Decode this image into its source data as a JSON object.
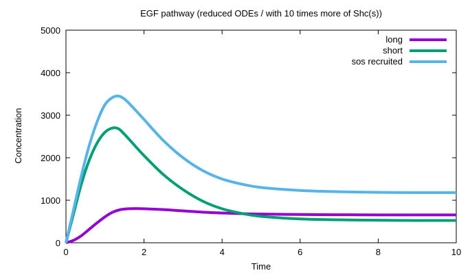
{
  "chart_data": {
    "type": "line",
    "title": "EGF pathway (reduced ODEs / with 10 times more of Shc(s))",
    "xlabel": "Time",
    "ylabel": "Concentration",
    "xlim": [
      0,
      10
    ],
    "ylim": [
      0,
      5000
    ],
    "xticks": [
      "0",
      "2",
      "4",
      "6",
      "8",
      "10"
    ],
    "yticks": [
      "0",
      "1000",
      "2000",
      "3000",
      "4000",
      "5000"
    ],
    "grid": false,
    "legend_position": "top-right",
    "series": [
      {
        "name": "long",
        "color": "#9400d3",
        "x": [
          0,
          0.2,
          0.4,
          0.6,
          0.8,
          1.0,
          1.2,
          1.4,
          1.6,
          1.8,
          2.0,
          2.5,
          3.0,
          3.5,
          4.0,
          4.5,
          5.0,
          6.0,
          7.0,
          8.0,
          9.0,
          10.0
        ],
        "y": [
          0,
          60,
          170,
          320,
          470,
          610,
          720,
          780,
          800,
          805,
          800,
          780,
          750,
          720,
          700,
          685,
          675,
          665,
          660,
          655,
          655,
          655
        ]
      },
      {
        "name": "short",
        "color": "#009e73",
        "x": [
          0,
          0.2,
          0.4,
          0.6,
          0.8,
          1.0,
          1.2,
          1.35,
          1.5,
          1.7,
          2.0,
          2.5,
          3.0,
          3.5,
          4.0,
          4.5,
          5.0,
          6.0,
          7.0,
          8.0,
          9.0,
          10.0
        ],
        "y": [
          0,
          700,
          1400,
          1950,
          2350,
          2600,
          2700,
          2680,
          2550,
          2350,
          2050,
          1600,
          1250,
          980,
          800,
          690,
          620,
          560,
          540,
          530,
          525,
          525
        ]
      },
      {
        "name": "sos recruited",
        "color": "#56b4e9",
        "x": [
          0,
          0.2,
          0.4,
          0.6,
          0.8,
          1.0,
          1.2,
          1.35,
          1.5,
          1.7,
          2.0,
          2.5,
          3.0,
          3.5,
          4.0,
          4.5,
          5.0,
          6.0,
          7.0,
          8.0,
          9.0,
          10.0
        ],
        "y": [
          0,
          800,
          1600,
          2300,
          2850,
          3250,
          3420,
          3450,
          3380,
          3200,
          2900,
          2400,
          2000,
          1700,
          1500,
          1380,
          1300,
          1230,
          1200,
          1185,
          1180,
          1180
        ]
      }
    ]
  }
}
